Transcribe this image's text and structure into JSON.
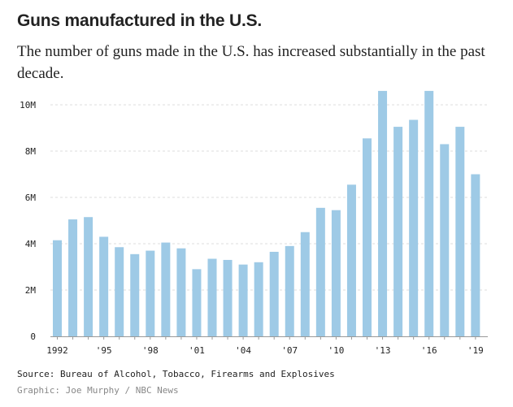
{
  "header": {
    "title": "Guns manufactured in the U.S.",
    "subtitle": "The number of guns made in the U.S. has increased substantially in the past decade."
  },
  "footer": {
    "source": "Source: Bureau of Alcohol, Tobacco, Firearms and Explosives",
    "credit": "Graphic: Joe Murphy / NBC News"
  },
  "colors": {
    "bar": "#9ecae6",
    "grid": "#dddddd",
    "axis": "#999999",
    "text": "#222222"
  },
  "chart_data": {
    "type": "bar",
    "title": "Guns manufactured in the U.S.",
    "xlabel": "",
    "ylabel": "",
    "ylim": [
      0,
      10.5
    ],
    "grid": true,
    "categories": [
      "1992",
      "1993",
      "1994",
      "1995",
      "1996",
      "1997",
      "1998",
      "1999",
      "2000",
      "2001",
      "2002",
      "2003",
      "2004",
      "2005",
      "2006",
      "2007",
      "2008",
      "2009",
      "2010",
      "2011",
      "2012",
      "2013",
      "2014",
      "2015",
      "2016",
      "2017",
      "2018",
      "2019"
    ],
    "values": [
      4.15,
      5.05,
      5.15,
      4.3,
      3.85,
      3.55,
      3.7,
      4.05,
      3.8,
      2.9,
      3.35,
      3.3,
      3.1,
      3.2,
      3.65,
      3.9,
      4.5,
      5.55,
      5.45,
      6.55,
      8.55,
      10.6,
      9.05,
      9.35,
      10.6,
      8.3,
      9.05,
      7.0
    ],
    "x_tick_labels": [
      {
        "category": "1992",
        "label": "1992"
      },
      {
        "category": "1995",
        "label": "'95"
      },
      {
        "category": "1998",
        "label": "'98"
      },
      {
        "category": "2001",
        "label": "'01"
      },
      {
        "category": "2004",
        "label": "'04"
      },
      {
        "category": "2007",
        "label": "'07"
      },
      {
        "category": "2010",
        "label": "'10"
      },
      {
        "category": "2013",
        "label": "'13"
      },
      {
        "category": "2016",
        "label": "'16"
      },
      {
        "category": "2019",
        "label": "'19"
      }
    ],
    "y_ticks": [
      {
        "value": 0,
        "label": "0"
      },
      {
        "value": 2,
        "label": "2M"
      },
      {
        "value": 4,
        "label": "4M"
      },
      {
        "value": 6,
        "label": "6M"
      },
      {
        "value": 8,
        "label": "8M"
      },
      {
        "value": 10,
        "label": "10M"
      }
    ]
  }
}
